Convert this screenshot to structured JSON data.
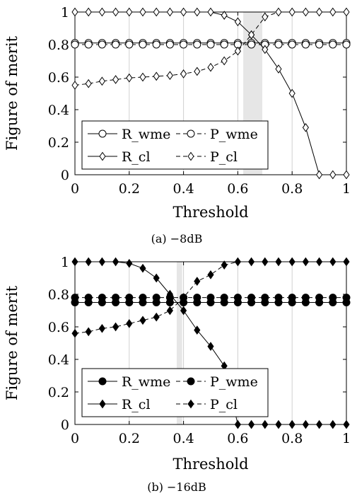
{
  "chart_data": [
    {
      "type": "line",
      "caption": "(a) −8dB",
      "xlabel": "Threshold",
      "ylabel": "Figure of merit",
      "xlim": [
        0,
        1
      ],
      "ylim": [
        0,
        1
      ],
      "xticks": [
        "0",
        "0.2",
        "0.4",
        "0.6",
        "0.8",
        "1"
      ],
      "yticks": [
        "0",
        "0.2",
        "0.4",
        "0.6",
        "0.8",
        "1"
      ],
      "grid": "vertical",
      "legend_position": "bottom-left",
      "shaded_band": [
        0.62,
        0.69
      ],
      "x": [
        0,
        0.05,
        0.1,
        0.15,
        0.2,
        0.25,
        0.3,
        0.35,
        0.4,
        0.45,
        0.5,
        0.55,
        0.6,
        0.65,
        0.7,
        0.75,
        0.8,
        0.85,
        0.9,
        0.95,
        1
      ],
      "series": [
        {
          "name": "R_wme",
          "marker": "circle-open",
          "dash": "solid",
          "values": [
            0.81,
            0.81,
            0.81,
            0.81,
            0.81,
            0.81,
            0.81,
            0.81,
            0.81,
            0.81,
            0.81,
            0.81,
            0.81,
            0.81,
            0.81,
            0.81,
            0.81,
            0.81,
            0.81,
            0.81,
            0.81
          ]
        },
        {
          "name": "P_wme",
          "marker": "circle-open",
          "dash": "dashed",
          "values": [
            0.8,
            0.8,
            0.8,
            0.8,
            0.8,
            0.8,
            0.8,
            0.8,
            0.8,
            0.8,
            0.8,
            0.8,
            0.8,
            0.8,
            0.8,
            0.8,
            0.8,
            0.8,
            0.8,
            0.8,
            0.8
          ]
        },
        {
          "name": "R_cl",
          "marker": "diamond-open",
          "dash": "solid",
          "values": [
            1,
            1,
            1,
            1,
            1,
            1,
            1,
            1,
            1,
            1,
            1,
            0.98,
            0.94,
            0.86,
            0.77,
            0.65,
            0.5,
            0.29,
            0,
            0,
            0
          ]
        },
        {
          "name": "P_cl",
          "marker": "diamond-open",
          "dash": "dashed",
          "values": [
            0.55,
            0.56,
            0.575,
            0.585,
            0.595,
            0.6,
            0.605,
            0.61,
            0.62,
            0.635,
            0.66,
            0.7,
            0.76,
            0.86,
            0.97,
            1,
            1,
            1,
            1,
            1,
            1
          ]
        }
      ]
    },
    {
      "type": "line",
      "caption": "(b) −16dB",
      "xlabel": "Threshold",
      "ylabel": "Figure of merit",
      "xlim": [
        0,
        1
      ],
      "ylim": [
        0,
        1
      ],
      "xticks": [
        "0",
        "0.2",
        "0.4",
        "0.6",
        "0.8",
        "1"
      ],
      "yticks": [
        "0",
        "0.2",
        "0.4",
        "0.6",
        "0.8",
        "1"
      ],
      "grid": "vertical",
      "legend_position": "bottom-left",
      "shaded_band": [
        0.375,
        0.395
      ],
      "x": [
        0,
        0.05,
        0.1,
        0.15,
        0.2,
        0.25,
        0.3,
        0.35,
        0.4,
        0.45,
        0.5,
        0.55,
        0.6,
        0.65,
        0.7,
        0.75,
        0.8,
        0.85,
        0.9,
        0.95,
        1
      ],
      "series": [
        {
          "name": "R_wme",
          "marker": "circle-filled",
          "dash": "solid",
          "values": [
            0.75,
            0.75,
            0.75,
            0.75,
            0.75,
            0.75,
            0.75,
            0.75,
            0.75,
            0.75,
            0.75,
            0.75,
            0.75,
            0.75,
            0.75,
            0.75,
            0.75,
            0.75,
            0.75,
            0.75,
            0.75
          ]
        },
        {
          "name": "P_wme",
          "marker": "circle-filled",
          "dash": "dashed",
          "values": [
            0.78,
            0.78,
            0.78,
            0.78,
            0.78,
            0.78,
            0.78,
            0.78,
            0.78,
            0.78,
            0.78,
            0.78,
            0.78,
            0.78,
            0.78,
            0.78,
            0.78,
            0.78,
            0.78,
            0.78,
            0.78
          ]
        },
        {
          "name": "R_cl",
          "marker": "diamond-filled",
          "dash": "solid",
          "values": [
            1,
            1,
            1,
            1,
            0.99,
            0.96,
            0.9,
            0.8,
            0.7,
            0.58,
            0.48,
            0.36,
            0,
            0,
            0,
            0,
            0,
            0,
            0,
            0,
            0
          ]
        },
        {
          "name": "P_cl",
          "marker": "diamond-filled",
          "dash": "dashed",
          "values": [
            0.56,
            0.57,
            0.59,
            0.6,
            0.62,
            0.64,
            0.66,
            0.7,
            0.78,
            0.88,
            0.92,
            0.98,
            1,
            1,
            1,
            1,
            1,
            1,
            1,
            1,
            1
          ]
        }
      ]
    }
  ]
}
